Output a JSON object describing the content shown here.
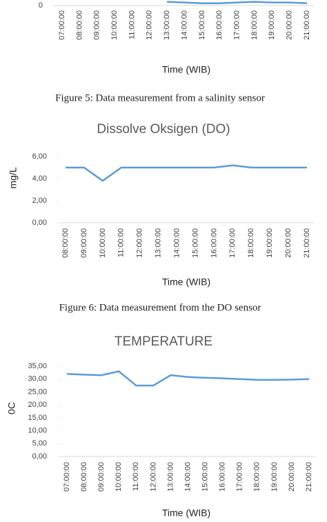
{
  "chart_data": [
    {
      "type": "line",
      "x_label": "Time (WIB)",
      "caption": "Figure 5: Data measurement from a salinity sensor",
      "categories": [
        "07:00:00",
        "08:00:00",
        "09:00:00",
        "10:00:00",
        "11:00:00",
        "12:00:00",
        "13:00:00",
        "14:00:00",
        "15:00:00",
        "16:00:00",
        "17:00:00",
        "18:00:00",
        "19:00:00",
        "20:00:00",
        "21:00:00"
      ],
      "series": [
        {
          "color": "#5b9bd5",
          "values": [
            null,
            null,
            null,
            null,
            null,
            null,
            0.05,
            0.04,
            0.03,
            0.03,
            0.04,
            0.05,
            0.04,
            0.04,
            0.03
          ]
        }
      ],
      "ylim": [
        0,
        1
      ],
      "yticks": [
        0
      ]
    },
    {
      "type": "line",
      "title": "Dissolve Oksigen (DO)",
      "y_label": "mg/L",
      "x_label": "Time (WIB)",
      "caption": "Figure 6: Data measurement from the DO sensor",
      "categories": [
        "08:00:00",
        "09:00:00",
        "10:00:00",
        "11:00:00",
        "12:00:00",
        "13:00:00",
        "14:00:00",
        "15:00:00",
        "16:00:00",
        "17:00:00",
        "18:00:00",
        "19:00:00",
        "20:00:00",
        "21:00:00"
      ],
      "series": [
        {
          "color": "#5b9bd5",
          "values": [
            5,
            5,
            3.8,
            5,
            5,
            5,
            5,
            5,
            5,
            5.2,
            5,
            5,
            5,
            5
          ]
        }
      ],
      "ylim": [
        0,
        6
      ],
      "yticks": [
        {
          "value": 0,
          "label": "0,00"
        },
        {
          "value": 2,
          "label": "2,00"
        },
        {
          "value": 4,
          "label": "4,00"
        },
        {
          "value": 6,
          "label": "6,00"
        }
      ]
    },
    {
      "type": "line",
      "title": "TEMPERATURE",
      "y_label": "0C",
      "x_label": "Time (WIB)",
      "categories": [
        "07:00:00",
        "08:00:00",
        "09:00:00",
        "10:00:00",
        "11:00:00",
        "12:00:00",
        "13:00:00",
        "14:00:00",
        "15:00:00",
        "16:00:00",
        "17:00:00",
        "18:00:00",
        "19:00:00",
        "20:00:00",
        "21:00:00"
      ],
      "series": [
        {
          "color": "#5b9bd5",
          "values": [
            32,
            31.7,
            31.5,
            33,
            27.5,
            27.5,
            31.5,
            30.8,
            30.5,
            30.3,
            30,
            29.7,
            29.7,
            29.8,
            30
          ]
        }
      ],
      "ylim": [
        0,
        35
      ],
      "yticks": [
        {
          "value": 0,
          "label": "0,00"
        },
        {
          "value": 5,
          "label": "5,00"
        },
        {
          "value": 10,
          "label": "10,00"
        },
        {
          "value": 15,
          "label": "15,00"
        },
        {
          "value": 20,
          "label": "20,00"
        },
        {
          "value": 25,
          "label": "25,00"
        },
        {
          "value": 30,
          "label": "30,00"
        },
        {
          "value": 35,
          "label": "35,00"
        }
      ]
    }
  ]
}
